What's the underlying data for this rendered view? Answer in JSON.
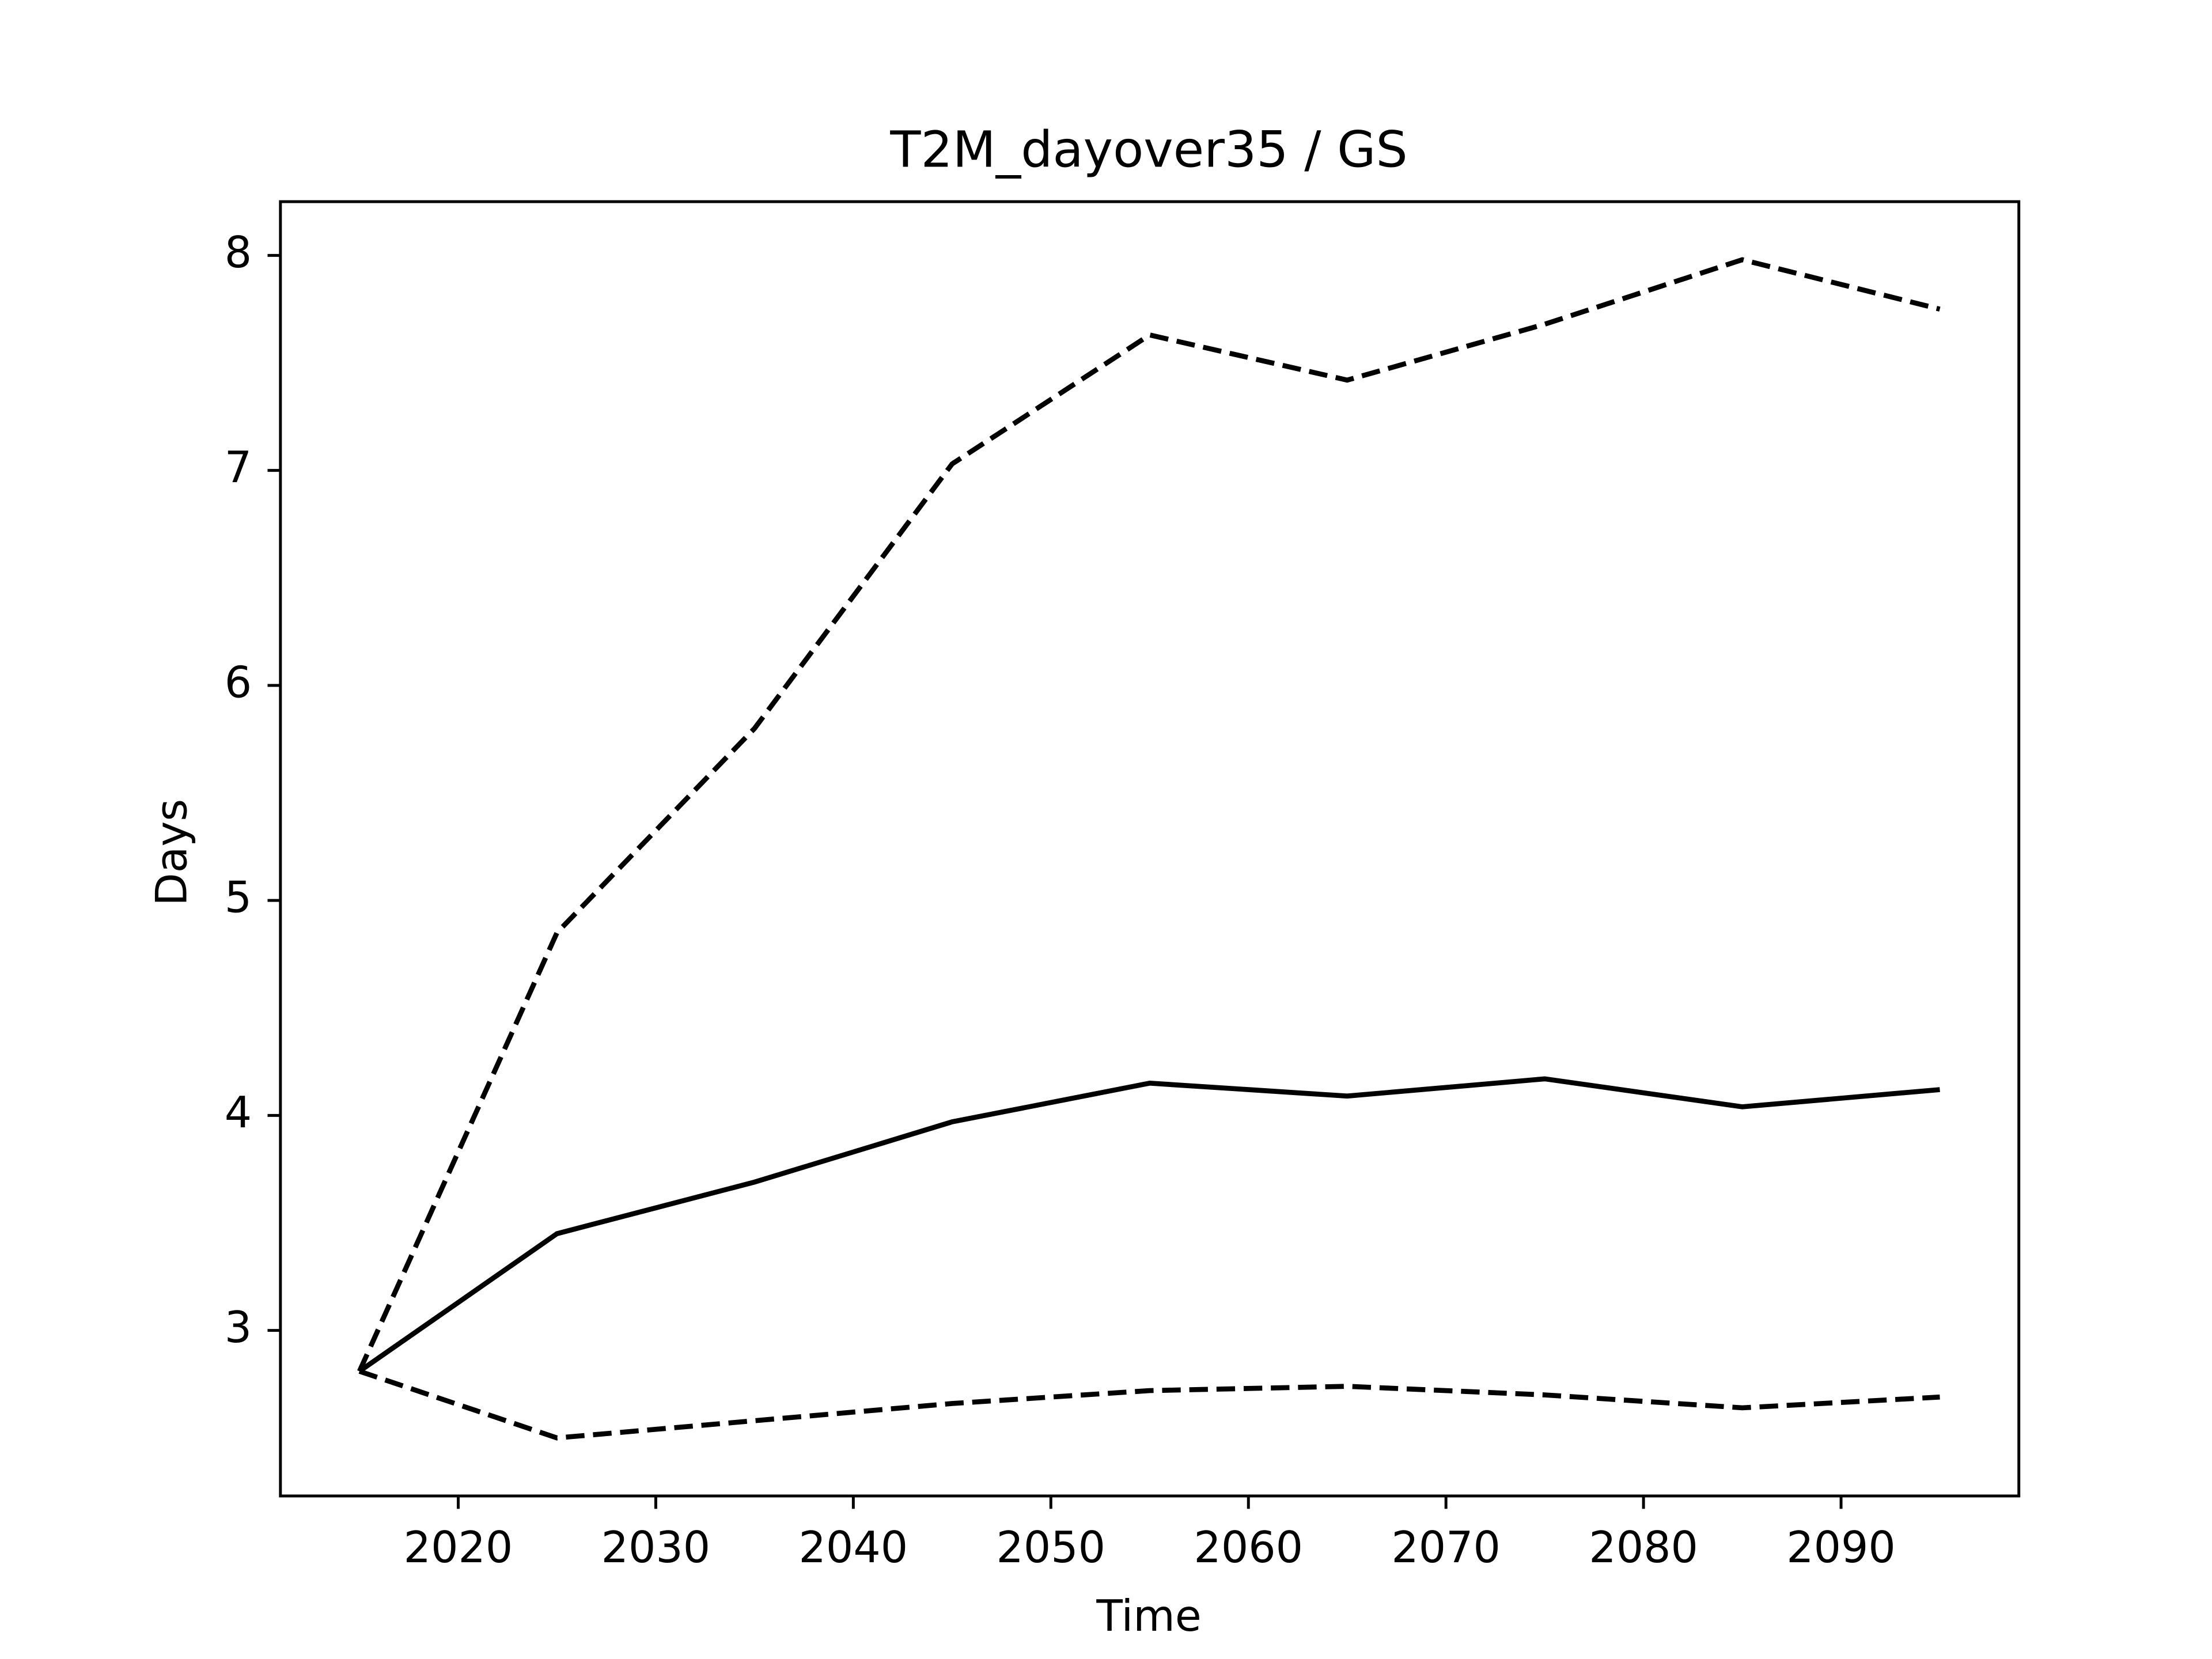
{
  "chart_data": {
    "type": "line",
    "title": "T2M_dayover35 / GS",
    "xlabel": "Time",
    "ylabel": "Days",
    "x": [
      2015,
      2025,
      2035,
      2045,
      2055,
      2065,
      2075,
      2085,
      2095
    ],
    "series": [
      {
        "color": "#000000",
        "style": "solid",
        "values": [
          2.81,
          3.45,
          3.69,
          3.97,
          4.15,
          4.09,
          4.17,
          4.04,
          4.12
        ]
      },
      {
        "color": "#000000",
        "style": "dashed",
        "values": [
          2.81,
          4.85,
          5.8,
          7.03,
          7.63,
          7.42,
          7.68,
          7.98,
          7.75
        ]
      },
      {
        "color": "#000000",
        "style": "dashed",
        "values": [
          2.81,
          2.5,
          2.58,
          2.66,
          2.72,
          2.74,
          2.7,
          2.64,
          2.69
        ]
      }
    ],
    "xlim": [
      2011,
      2099
    ],
    "ylim": [
      2.23,
      8.25
    ],
    "xticks": [
      2020,
      2030,
      2040,
      2050,
      2060,
      2070,
      2080,
      2090
    ],
    "yticks": [
      3,
      4,
      5,
      6,
      7,
      8
    ],
    "grid": false
  }
}
